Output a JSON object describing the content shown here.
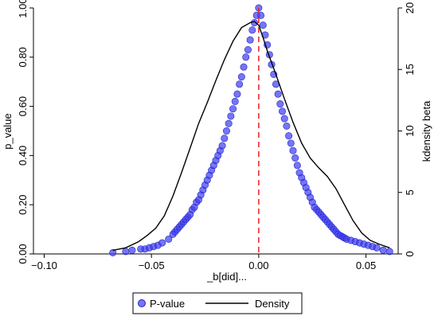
{
  "chart_data": {
    "type": "scatter",
    "xlabel": "_b[did]...",
    "ylabel_left": "p_value",
    "ylabel_right": "kdensity beta",
    "x_ticks": [
      -0.1,
      -0.05,
      0.0,
      0.05
    ],
    "x_tick_labels": [
      "−0.10",
      "−0.05",
      "0.00",
      "0.05"
    ],
    "xlim": [
      -0.105,
      0.065
    ],
    "y_left_ticks": [
      0.0,
      0.2,
      0.4,
      0.6,
      0.8,
      1.0
    ],
    "y_left_tick_labels": [
      "0.00",
      "0.20",
      "0.40",
      "0.60",
      "0.80",
      "1.00"
    ],
    "y_left_lim": [
      0.0,
      1.0
    ],
    "y_right_ticks": [
      0,
      5,
      10,
      15,
      20
    ],
    "y_right_tick_labels": [
      "0",
      "5",
      "10",
      "15",
      "20"
    ],
    "y_right_lim": [
      0,
      20
    ],
    "reference_line": {
      "x": 0.0,
      "color": "#e8211f",
      "style": "dashed"
    },
    "legend_position": "bottom",
    "series": [
      {
        "name": "P-value",
        "kind": "scatter",
        "color": "#3c3cf0",
        "axis": "left",
        "x": [
          -0.068,
          -0.062,
          -0.059,
          -0.055,
          -0.053,
          -0.051,
          -0.049,
          -0.047,
          -0.045,
          -0.042,
          -0.04,
          -0.039,
          -0.038,
          -0.037,
          -0.036,
          -0.035,
          -0.034,
          -0.033,
          -0.032,
          -0.031,
          -0.03,
          -0.029,
          -0.028,
          -0.027,
          -0.026,
          -0.025,
          -0.024,
          -0.023,
          -0.022,
          -0.021,
          -0.02,
          -0.019,
          -0.018,
          -0.017,
          -0.016,
          -0.015,
          -0.014,
          -0.013,
          -0.012,
          -0.011,
          -0.01,
          -0.009,
          -0.008,
          -0.007,
          -0.006,
          -0.005,
          -0.004,
          -0.003,
          -0.002,
          -0.001,
          0.0,
          0.001,
          0.002,
          0.003,
          0.004,
          0.005,
          0.006,
          0.007,
          0.008,
          0.009,
          0.01,
          0.011,
          0.012,
          0.013,
          0.014,
          0.015,
          0.016,
          0.017,
          0.018,
          0.019,
          0.02,
          0.021,
          0.022,
          0.023,
          0.024,
          0.025,
          0.026,
          0.027,
          0.028,
          0.029,
          0.03,
          0.031,
          0.032,
          0.033,
          0.034,
          0.035,
          0.036,
          0.037,
          0.038,
          0.039,
          0.04,
          0.041,
          0.043,
          0.045,
          0.047,
          0.049,
          0.051,
          0.053,
          0.055,
          0.058,
          0.061
        ],
        "y": [
          0.005,
          0.01,
          0.015,
          0.02,
          0.02,
          0.025,
          0.03,
          0.035,
          0.045,
          0.06,
          0.08,
          0.09,
          0.1,
          0.11,
          0.12,
          0.13,
          0.14,
          0.15,
          0.16,
          0.18,
          0.19,
          0.21,
          0.22,
          0.24,
          0.26,
          0.28,
          0.3,
          0.32,
          0.34,
          0.36,
          0.38,
          0.4,
          0.42,
          0.44,
          0.47,
          0.5,
          0.53,
          0.56,
          0.59,
          0.62,
          0.65,
          0.69,
          0.72,
          0.76,
          0.8,
          0.83,
          0.87,
          0.91,
          0.94,
          0.97,
          1.0,
          0.97,
          0.93,
          0.89,
          0.85,
          0.81,
          0.77,
          0.73,
          0.69,
          0.65,
          0.61,
          0.58,
          0.55,
          0.52,
          0.48,
          0.45,
          0.42,
          0.39,
          0.36,
          0.33,
          0.31,
          0.29,
          0.27,
          0.25,
          0.23,
          0.21,
          0.19,
          0.18,
          0.17,
          0.16,
          0.15,
          0.14,
          0.13,
          0.12,
          0.11,
          0.1,
          0.09,
          0.08,
          0.075,
          0.07,
          0.065,
          0.06,
          0.055,
          0.05,
          0.045,
          0.04,
          0.035,
          0.03,
          0.025,
          0.015,
          0.01
        ]
      },
      {
        "name": "Density",
        "kind": "line",
        "color": "#000000",
        "axis": "right",
        "x": [
          -0.068,
          -0.062,
          -0.056,
          -0.052,
          -0.048,
          -0.044,
          -0.04,
          -0.036,
          -0.032,
          -0.028,
          -0.024,
          -0.02,
          -0.016,
          -0.012,
          -0.008,
          -0.004,
          -0.002,
          0.0,
          0.002,
          0.004,
          0.008,
          0.012,
          0.016,
          0.02,
          0.024,
          0.028,
          0.032,
          0.036,
          0.04,
          0.044,
          0.048,
          0.052,
          0.056,
          0.061
        ],
        "y": [
          0.3,
          0.5,
          1.0,
          1.5,
          2.1,
          3.1,
          4.7,
          6.6,
          8.6,
          10.6,
          12.3,
          14.1,
          15.8,
          17.3,
          18.4,
          18.8,
          18.9,
          18.6,
          17.6,
          16.5,
          14.6,
          12.6,
          10.7,
          9.0,
          7.8,
          7.0,
          6.3,
          5.3,
          4.0,
          2.7,
          1.7,
          1.1,
          0.8,
          0.5
        ]
      }
    ]
  }
}
